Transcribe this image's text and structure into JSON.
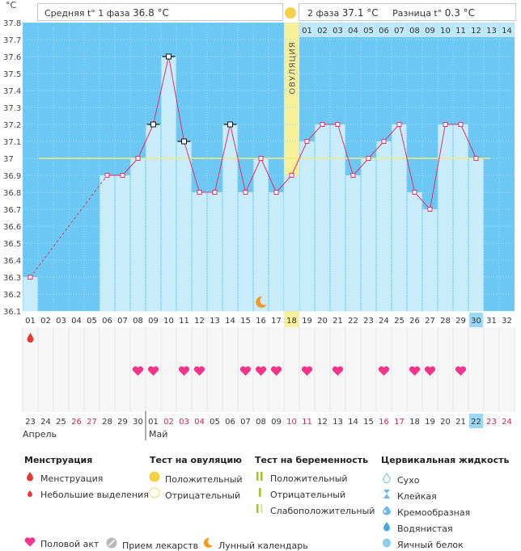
{
  "unit_label": "°C",
  "header": {
    "phase1_label": "Средняя t° 1 фаза",
    "phase1_value": "36.8 °C",
    "phase2_label": "2 фаза",
    "phase2_value": "37.1 °C",
    "diff_label": "Разница t°",
    "diff_value": "0.3 °C"
  },
  "ovulation_label": "ОВУЛЯЦИЯ",
  "colors": {
    "bar": "#c9ecfb",
    "plot_bg": "#6cc8f2",
    "line": "#e3306a",
    "ovulation_band": "#f8ef9b",
    "mean_line": "#f5e97c",
    "heart": "#f4348a",
    "drop": "#e53935"
  },
  "chart_data": {
    "type": "line",
    "title": "",
    "ylabel": "°C",
    "ylim": [
      36.1,
      37.8
    ],
    "y_ticks": [
      "36.1",
      "36.2",
      "36.3",
      "36.4",
      "36.5",
      "36.6",
      "36.7",
      "36.8",
      "36.9",
      "37",
      "37.1",
      "37.2",
      "37.3",
      "37.4",
      "37.5",
      "37.6",
      "37.7",
      "37.8"
    ],
    "cycle_days": [
      "01",
      "02",
      "03",
      "04",
      "05",
      "06",
      "07",
      "08",
      "09",
      "10",
      "11",
      "12",
      "13",
      "14",
      "15",
      "16",
      "17",
      "18",
      "19",
      "20",
      "21",
      "22",
      "23",
      "24",
      "25",
      "26",
      "27",
      "28",
      "29",
      "30",
      "31",
      "32"
    ],
    "post_ovulation_days": [
      "01",
      "02",
      "03",
      "04",
      "05",
      "06",
      "07",
      "08",
      "09",
      "10",
      "11",
      "12",
      "13",
      "14"
    ],
    "temperatures": [
      36.3,
      null,
      null,
      null,
      null,
      36.9,
      36.9,
      37.0,
      37.2,
      37.6,
      37.1,
      36.8,
      36.8,
      37.2,
      36.8,
      37.0,
      36.8,
      36.9,
      37.1,
      37.2,
      37.2,
      36.9,
      37.0,
      37.1,
      37.2,
      36.8,
      36.7,
      37.2,
      37.2,
      37.0,
      null,
      null
    ],
    "marked_days": [
      9,
      10,
      11,
      14
    ],
    "ovulation_day": 18,
    "coverline": 37.0,
    "highlight_day": "30",
    "calendar_dates": [
      "23",
      "24",
      "25",
      "26",
      "27",
      "28",
      "29",
      "30",
      "01",
      "02",
      "03",
      "04",
      "05",
      "06",
      "07",
      "08",
      "09",
      "10",
      "11",
      "12",
      "13",
      "14",
      "15",
      "16",
      "17",
      "18",
      "19",
      "20",
      "21",
      "22",
      "23",
      "24"
    ],
    "red_dates": [
      3,
      4,
      9,
      10,
      11,
      17,
      18,
      23,
      24,
      30,
      31
    ],
    "months": [
      "Апрель",
      "Май"
    ],
    "menstruation_days": [
      1
    ],
    "intercourse_days": [
      8,
      9,
      11,
      12,
      15,
      16,
      17,
      19,
      21,
      24,
      26,
      27,
      29
    ],
    "moon_day": 16
  },
  "legend": {
    "menstruation": {
      "title": "Менструация",
      "items": [
        "Менструация",
        "Небольшие выделения"
      ]
    },
    "ovulation_test": {
      "title": "Тест на овуляцию",
      "items": [
        "Положительный",
        "Отрицательный"
      ]
    },
    "pregnancy_test": {
      "title": "Тест на беременность",
      "items": [
        "Положительный",
        "Отрицательный",
        "Слабоположительный"
      ]
    },
    "cervical": {
      "title": "Цервикальная жидкость",
      "items": [
        "Сухо",
        "Клейкая",
        "Кремообразная",
        "Водянистая",
        "Яичный белок"
      ]
    },
    "bottom": [
      "Половой акт",
      "Прием лекарств",
      "Лунный календарь"
    ]
  }
}
